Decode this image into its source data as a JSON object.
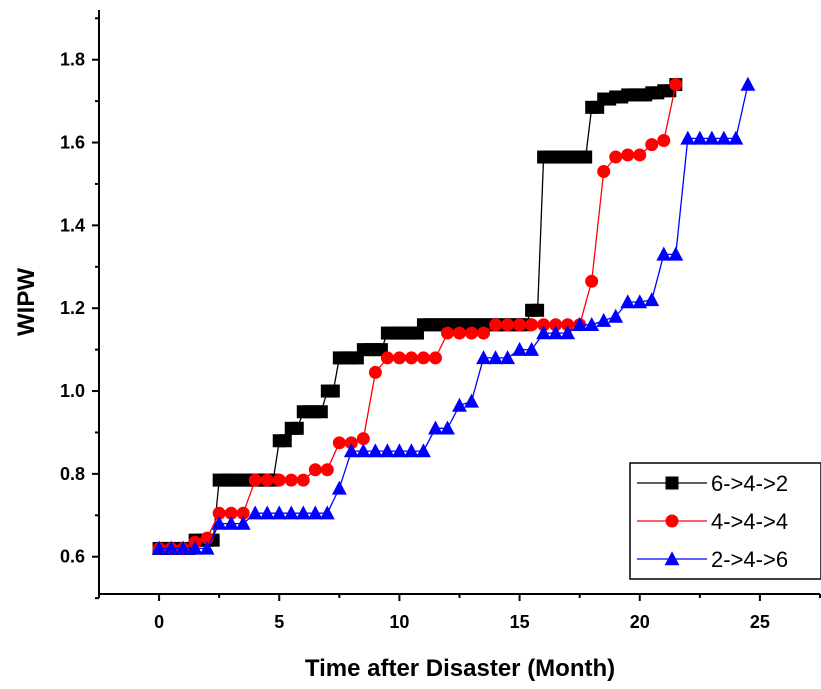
{
  "chart_data": {
    "type": "line",
    "xlabel": "Time after Disaster (Month)",
    "ylabel": "WIPW",
    "xlim": [
      -2.5,
      27.5
    ],
    "ylim": [
      0.51,
      1.92
    ],
    "x_ticks": [
      0,
      5,
      10,
      15,
      20,
      25
    ],
    "x_tick_labels": [
      "0",
      "5",
      "10",
      "15",
      "20",
      "25"
    ],
    "y_ticks": [
      0.6,
      0.8,
      1.0,
      1.2,
      1.4,
      1.6,
      1.8
    ],
    "y_tick_labels": [
      "0.6",
      "0.8",
      "1.0",
      "1.2",
      "1.4",
      "1.6",
      "1.8"
    ],
    "grid": false,
    "legend_position": "bottom-right",
    "series": [
      {
        "name": "6->4->2",
        "color": "#000000",
        "marker": "square",
        "x": [
          0,
          0.25,
          0.5,
          0.75,
          1,
          1.25,
          1.5,
          1.75,
          2,
          2.25,
          2.5,
          2.75,
          3,
          3.25,
          3.5,
          3.75,
          4,
          4.25,
          4.5,
          4.75,
          5,
          5.25,
          5.5,
          5.75,
          6,
          6.25,
          6.5,
          6.75,
          7,
          7.25,
          7.5,
          7.75,
          8,
          8.25,
          8.5,
          8.75,
          9,
          9.25,
          9.5,
          9.75,
          10,
          10.25,
          10.5,
          10.75,
          11,
          11.25,
          11.5,
          11.75,
          12,
          12.25,
          12.5,
          12.75,
          13,
          13.25,
          13.5,
          13.75,
          14,
          14.25,
          14.5,
          14.75,
          15,
          15.25,
          15.5,
          15.75,
          16,
          16.25,
          16.5,
          16.75,
          17,
          17.25,
          17.5,
          17.75,
          18,
          18.25,
          18.5,
          18.75,
          19,
          19.25,
          19.5,
          19.75,
          20,
          20.25,
          20.5,
          20.75,
          21,
          21.25,
          21.5
        ],
        "y": [
          0.62,
          0.62,
          0.62,
          0.62,
          0.62,
          0.62,
          0.64,
          0.64,
          0.64,
          0.64,
          0.785,
          0.785,
          0.785,
          0.785,
          0.785,
          0.785,
          0.785,
          0.785,
          0.785,
          0.785,
          0.88,
          0.88,
          0.91,
          0.91,
          0.95,
          0.95,
          0.95,
          0.95,
          1.0,
          1.0,
          1.08,
          1.08,
          1.08,
          1.08,
          1.1,
          1.1,
          1.1,
          1.1,
          1.14,
          1.14,
          1.14,
          1.14,
          1.14,
          1.14,
          1.16,
          1.16,
          1.16,
          1.16,
          1.16,
          1.16,
          1.16,
          1.16,
          1.16,
          1.16,
          1.16,
          1.16,
          1.16,
          1.16,
          1.16,
          1.16,
          1.16,
          1.16,
          1.195,
          1.195,
          1.565,
          1.565,
          1.565,
          1.565,
          1.565,
          1.565,
          1.565,
          1.565,
          1.685,
          1.685,
          1.705,
          1.705,
          1.71,
          1.71,
          1.715,
          1.715,
          1.715,
          1.715,
          1.72,
          1.72,
          1.725,
          1.725,
          1.74
        ]
      },
      {
        "name": "4->4->4",
        "color": "#ff0000",
        "marker": "circle",
        "x": [
          0,
          0.5,
          1,
          1.5,
          2,
          2.5,
          3,
          3.5,
          4,
          4.5,
          5,
          5.5,
          6,
          6.5,
          7,
          7.5,
          8,
          8.5,
          9,
          9.5,
          10,
          10.5,
          11,
          11.5,
          12,
          12.5,
          13,
          13.5,
          14,
          14.5,
          15,
          15.5,
          16,
          16.5,
          17,
          17.5,
          18,
          18.5,
          19,
          19.5,
          20,
          20.5,
          21,
          21.5
        ],
        "y": [
          0.62,
          0.62,
          0.62,
          0.635,
          0.645,
          0.705,
          0.705,
          0.705,
          0.785,
          0.785,
          0.785,
          0.785,
          0.785,
          0.81,
          0.81,
          0.875,
          0.875,
          0.885,
          1.045,
          1.08,
          1.08,
          1.08,
          1.08,
          1.08,
          1.14,
          1.14,
          1.14,
          1.14,
          1.16,
          1.16,
          1.16,
          1.16,
          1.16,
          1.16,
          1.16,
          1.16,
          1.265,
          1.53,
          1.565,
          1.57,
          1.57,
          1.595,
          1.605,
          1.74
        ]
      },
      {
        "name": "2->4->6",
        "color": "#0000ff",
        "marker": "triangle",
        "x": [
          0,
          0.5,
          1,
          1.5,
          2,
          2.5,
          3,
          3.5,
          4,
          4.5,
          5,
          5.5,
          6,
          6.5,
          7,
          7.5,
          8,
          8.5,
          9,
          9.5,
          10,
          10.5,
          11,
          11.5,
          12,
          12.5,
          13,
          13.5,
          14,
          14.5,
          15,
          15.5,
          16,
          16.5,
          17,
          17.5,
          18,
          18.5,
          19,
          19.5,
          20,
          20.5,
          21,
          21.5,
          22,
          22.5,
          23,
          23.5,
          24,
          24.5
        ],
        "y": [
          0.62,
          0.62,
          0.62,
          0.62,
          0.62,
          0.68,
          0.68,
          0.68,
          0.705,
          0.705,
          0.705,
          0.705,
          0.705,
          0.705,
          0.705,
          0.765,
          0.855,
          0.855,
          0.855,
          0.855,
          0.855,
          0.855,
          0.855,
          0.91,
          0.91,
          0.965,
          0.975,
          1.08,
          1.08,
          1.08,
          1.1,
          1.1,
          1.14,
          1.14,
          1.14,
          1.16,
          1.16,
          1.17,
          1.18,
          1.215,
          1.215,
          1.22,
          1.33,
          1.33,
          1.61,
          1.61,
          1.61,
          1.61,
          1.61,
          1.74
        ]
      }
    ]
  }
}
